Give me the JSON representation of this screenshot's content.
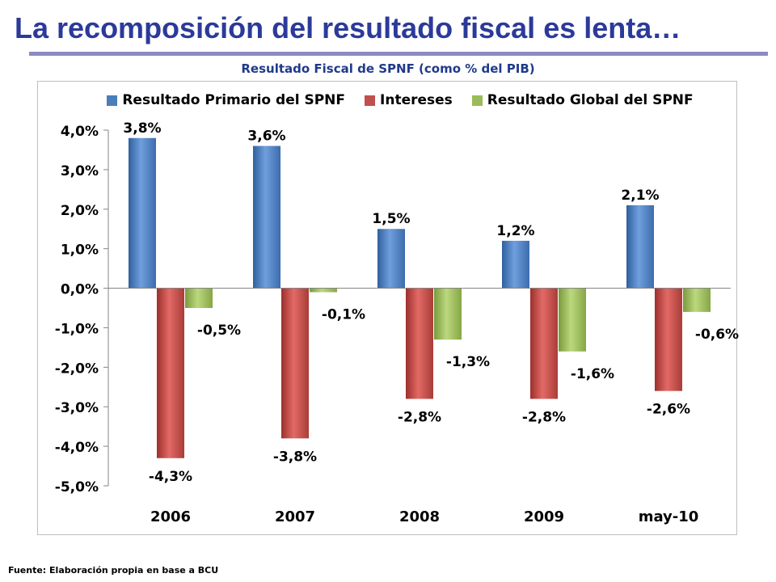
{
  "slide": {
    "title": "La recomposición del resultado fiscal es lenta…",
    "source": "Fuente: Elaboración propia en base a BCU"
  },
  "colors": {
    "title": "#2b3a9a",
    "rule": "#8c8ac4",
    "chart_title": "#1f3a8a"
  },
  "chart_data": {
    "type": "bar",
    "title": "Resultado Fiscal de SPNF (como % del PIB)",
    "xlabel": "",
    "ylabel": "",
    "categories": [
      "2006",
      "2007",
      "2008",
      "2009",
      "may-10"
    ],
    "series": [
      {
        "name": "Resultado Primario del SPNF",
        "values": [
          3.8,
          3.6,
          1.5,
          1.2,
          2.1
        ],
        "labels": [
          "3,8%",
          "3,6%",
          "1,5%",
          "1,2%",
          "2,1%"
        ],
        "color": "#4a7ebb"
      },
      {
        "name": "Intereses",
        "values": [
          -4.3,
          -3.8,
          -2.8,
          -2.8,
          -2.6
        ],
        "labels": [
          "-4,3%",
          "-3,8%",
          "-2,8%",
          "-2,8%",
          "-2,6%"
        ],
        "color": "#c0504d"
      },
      {
        "name": "Resultado Global del SPNF",
        "values": [
          -0.5,
          -0.1,
          -1.3,
          -1.6,
          -0.6
        ],
        "labels": [
          "-0,5%",
          "-0,1%",
          "-1,3%",
          "-1,6%",
          "-0,6%"
        ],
        "color": "#9bbb59"
      }
    ],
    "ylim": [
      -5,
      4
    ],
    "yticks": [
      4,
      3,
      2,
      1,
      0,
      -1,
      -2,
      -3,
      -4,
      -5
    ],
    "ytick_labels": [
      "4,0%",
      "3,0%",
      "2,0%",
      "1,0%",
      "0,0%",
      "-1,0%",
      "-2,0%",
      "-3,0%",
      "-4,0%",
      "-5,0%"
    ],
    "grid": false,
    "legend_position": "top"
  }
}
